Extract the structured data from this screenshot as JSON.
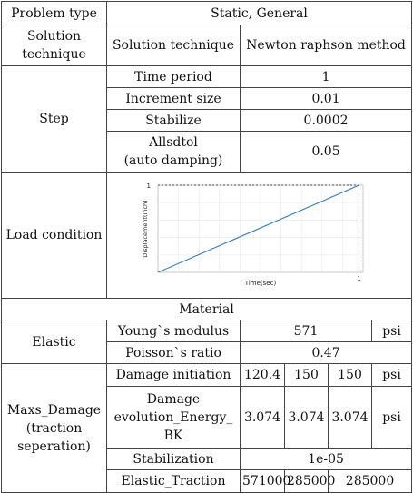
{
  "header": {
    "problem_type_label": "Problem type",
    "problem_type_value": "Static, General"
  },
  "solution": {
    "label_line1": "Solution",
    "label_line2": "technique",
    "sub_label": "Solution technique",
    "value": "Newton raphson method"
  },
  "step": {
    "label": "Step",
    "rows": [
      {
        "label": "Time period",
        "value": "1"
      },
      {
        "label": "Increment size",
        "value": "0.01"
      },
      {
        "label": "Stabilize",
        "value": "0.0002"
      }
    ],
    "allsdtol_line1": "Allsdtol",
    "allsdtol_line2": "(auto damping)",
    "allsdtol_value": "0.05"
  },
  "load": {
    "label": "Load condition"
  },
  "chart_data": {
    "type": "line",
    "xlabel": "Time(sec)",
    "ylabel": "Displacement(inch)",
    "x": [
      0,
      1
    ],
    "series": [
      {
        "values": [
          0,
          1
        ]
      }
    ],
    "xlim": [
      0,
      1.02
    ],
    "ylim": [
      0,
      1
    ],
    "x_tick_labels": [
      "1"
    ],
    "y_tick_labels": [
      "1"
    ],
    "grid": true,
    "line_color": "#3b82c4"
  },
  "material": {
    "title": "Material",
    "elastic": {
      "label": "Elastic",
      "youngs_label": "Young`s modulus",
      "youngs_value": "571",
      "youngs_unit": "psi",
      "poisson_label": "Poisson`s ratio",
      "poisson_value": "0.47"
    },
    "damage": {
      "label_line1": "Maxs_Damage",
      "label_line2": "(traction",
      "label_line3": "seperation)",
      "initiation_label": "Damage initiation",
      "initiation_values": [
        "120.4",
        "150",
        "150"
      ],
      "initiation_unit": "psi",
      "evolution_line1": "Damage",
      "evolution_line2": "evolution_Energy_",
      "evolution_line3": "BK",
      "evolution_values": [
        "3.074",
        "3.074",
        "3.074"
      ],
      "evolution_unit": "psi",
      "stabilization_label": "Stabilization",
      "stabilization_value": "1e-05",
      "traction_label": "Elastic_Traction",
      "traction_values": [
        "571000",
        "285000",
        "285000"
      ]
    }
  }
}
